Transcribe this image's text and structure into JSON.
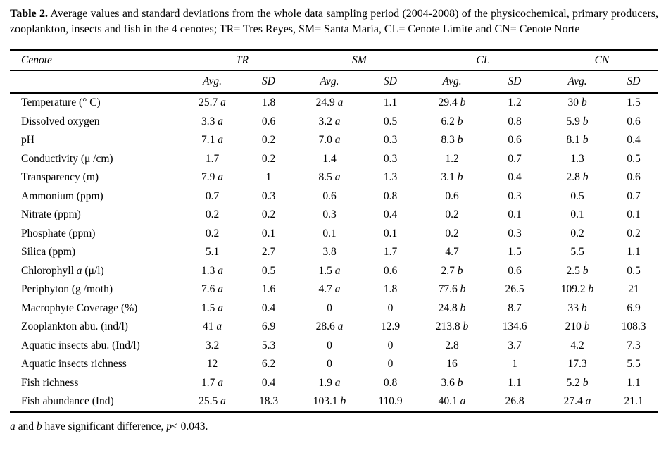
{
  "caption": {
    "label": "Table 2.",
    "text": " Average values and standard deviations from the whole data sampling period (2004-2008) of the physicochemical, primary producers, zooplankton, insects and fish in the 4 cenotes; TR= Tres Reyes, SM= Santa María, CL= Cenote Límite and CN= Cenote Norte"
  },
  "table": {
    "corner_label": "Cenote",
    "groups": [
      "TR",
      "SM",
      "CL",
      "CN"
    ],
    "sub_headers": [
      "Avg.",
      "SD"
    ],
    "rows": [
      {
        "label": "Temperature (° C)",
        "values": [
          "25.7 a",
          "1.8",
          "24.9 a",
          "1.1",
          "29.4 b",
          "1.2",
          "30 b",
          "1.5"
        ]
      },
      {
        "label": "Dissolved oxygen",
        "values": [
          "3.3 a",
          "0.6",
          "3.2 a",
          "0.5",
          "6.2 b",
          "0.8",
          "5.9 b",
          "0.6"
        ]
      },
      {
        "label": "pH",
        "values": [
          "7.1 a",
          "0.2",
          "7.0 a",
          "0.3",
          "8.3 b",
          "0.6",
          "8.1 b",
          "0.4"
        ]
      },
      {
        "label": "Conductivity (μ /cm)",
        "values": [
          "1.7",
          "0.2",
          "1.4",
          "0.3",
          "1.2",
          "0.7",
          "1.3",
          "0.5"
        ]
      },
      {
        "label": "Transparency (m)",
        "values": [
          "7.9 a",
          "1",
          "8.5 a",
          "1.3",
          "3.1 b",
          "0.4",
          "2.8 b",
          "0.6"
        ]
      },
      {
        "label": "Ammonium (ppm)",
        "values": [
          "0.7",
          "0.3",
          "0.6",
          "0.8",
          "0.6",
          "0.3",
          "0.5",
          "0.7"
        ]
      },
      {
        "label": "Nitrate (ppm)",
        "values": [
          "0.2",
          "0.2",
          "0.3",
          "0.4",
          "0.2",
          "0.1",
          "0.1",
          "0.1"
        ]
      },
      {
        "label": "Phosphate (ppm)",
        "values": [
          "0.2",
          "0.1",
          "0.1",
          "0.1",
          "0.2",
          "0.3",
          "0.2",
          "0.2"
        ]
      },
      {
        "label": "Silica (ppm)",
        "values": [
          "5.1",
          "2.7",
          "3.8",
          "1.7",
          "4.7",
          "1.5",
          "5.5",
          "1.1"
        ]
      },
      {
        "label": "Chlorophyll *a* (μ/l)",
        "values": [
          "1.3 a",
          "0.5",
          "1.5 a",
          "0.6",
          "2.7 b",
          "0.6",
          "2.5 b",
          "0.5"
        ]
      },
      {
        "label": "Periphyton (g /moth)",
        "values": [
          "7.6 a",
          "1.6",
          "4.7 a",
          "1.8",
          "77.6 b",
          "26.5",
          "109.2 b",
          "21"
        ]
      },
      {
        "label": "Macrophyte Coverage (%)",
        "values": [
          "1.5 a",
          "0.4",
          "0",
          "0",
          "24.8 b",
          "8.7",
          "33 b",
          "6.9"
        ]
      },
      {
        "label": "Zooplankton abu. (ind/l)",
        "values": [
          "41 a",
          "6.9",
          "28.6 a",
          "12.9",
          "213.8 b",
          "134.6",
          "210 b",
          "108.3"
        ]
      },
      {
        "label": "Aquatic insects abu. (Ind/l)",
        "values": [
          "3.2",
          "5.3",
          "0",
          "0",
          "2.8",
          "3.7",
          "4.2",
          "7.3"
        ]
      },
      {
        "label": "Aquatic insects richness",
        "values": [
          "12",
          "6.2",
          "0",
          "0",
          "16",
          "1",
          "17.3",
          "5.5"
        ]
      },
      {
        "label": "Fish richness",
        "values": [
          "1.7 a",
          "0.4",
          "1.9 a",
          "0.8",
          "3.6 b",
          "1.1",
          "5.2 b",
          "1.1"
        ]
      },
      {
        "label": "Fish abundance (Ind)",
        "values": [
          "25.5 a",
          "18.3",
          "103.1 b",
          "110.9",
          "40.1 a",
          "26.8",
          "27.4 a",
          "21.1"
        ]
      }
    ],
    "footnote": "*a* and *b* have significant difference, *p*< 0.043."
  }
}
